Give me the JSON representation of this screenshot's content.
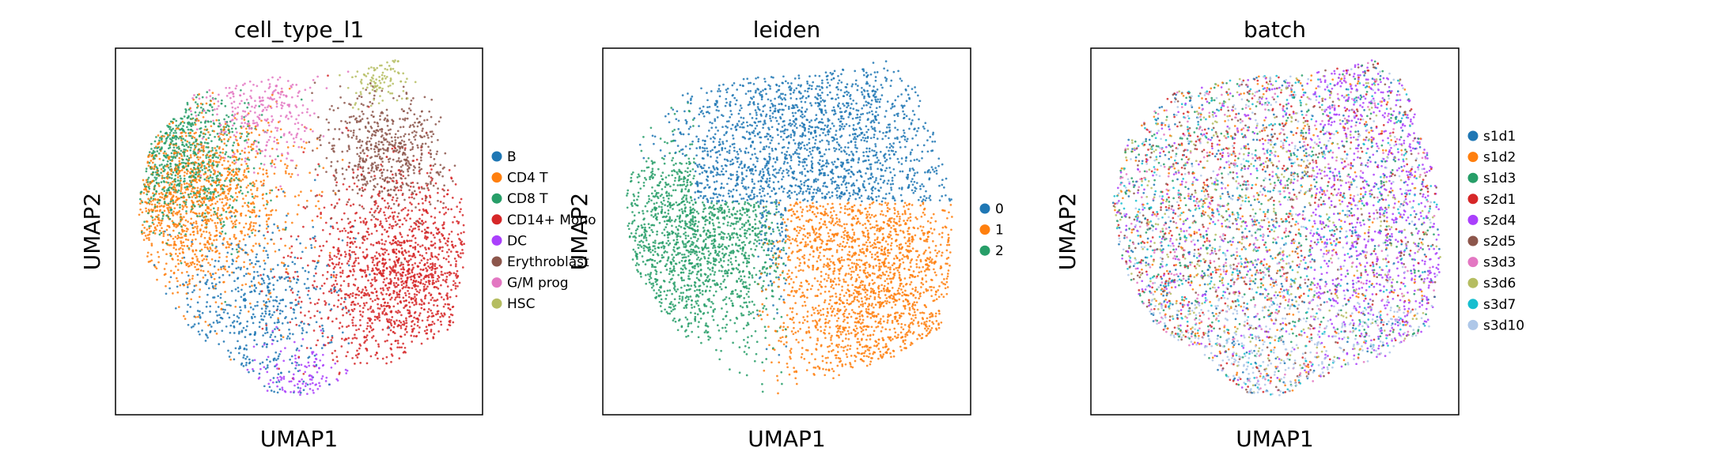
{
  "chart_data": [
    {
      "type": "scatter",
      "title": "cell_type_l1",
      "xlabel": "UMAP1",
      "ylabel": "UMAP2",
      "grid": false,
      "legend_position": "right",
      "series": [
        {
          "name": "B",
          "color": "#1f77b4"
        },
        {
          "name": "CD4 T",
          "color": "#ff7f0e"
        },
        {
          "name": "CD8 T",
          "color": "#279e68"
        },
        {
          "name": "CD14+ Mono",
          "color": "#d62728"
        },
        {
          "name": "DC",
          "color": "#aa40fc"
        },
        {
          "name": "Erythroblast",
          "color": "#8c564b"
        },
        {
          "name": "G/M prog",
          "color": "#e377c2"
        },
        {
          "name": "HSC",
          "color": "#b5bd61"
        }
      ]
    },
    {
      "type": "scatter",
      "title": "leiden",
      "xlabel": "UMAP1",
      "ylabel": "UMAP2",
      "grid": false,
      "legend_position": "right",
      "series": [
        {
          "name": "0",
          "color": "#1f77b4"
        },
        {
          "name": "1",
          "color": "#ff7f0e"
        },
        {
          "name": "2",
          "color": "#279e68"
        }
      ]
    },
    {
      "type": "scatter",
      "title": "batch",
      "xlabel": "UMAP1",
      "ylabel": "UMAP2",
      "grid": false,
      "legend_position": "right",
      "series": [
        {
          "name": "s1d1",
          "color": "#1f77b4"
        },
        {
          "name": "s1d2",
          "color": "#ff7f0e"
        },
        {
          "name": "s1d3",
          "color": "#279e68"
        },
        {
          "name": "s2d1",
          "color": "#d62728"
        },
        {
          "name": "s2d4",
          "color": "#aa40fc"
        },
        {
          "name": "s2d5",
          "color": "#8c564b"
        },
        {
          "name": "s3d3",
          "color": "#e377c2"
        },
        {
          "name": "s3d6",
          "color": "#b5bd61"
        },
        {
          "name": "s3d7",
          "color": "#17becf"
        },
        {
          "name": "s3d10",
          "color": "#aec7e8"
        }
      ]
    }
  ]
}
